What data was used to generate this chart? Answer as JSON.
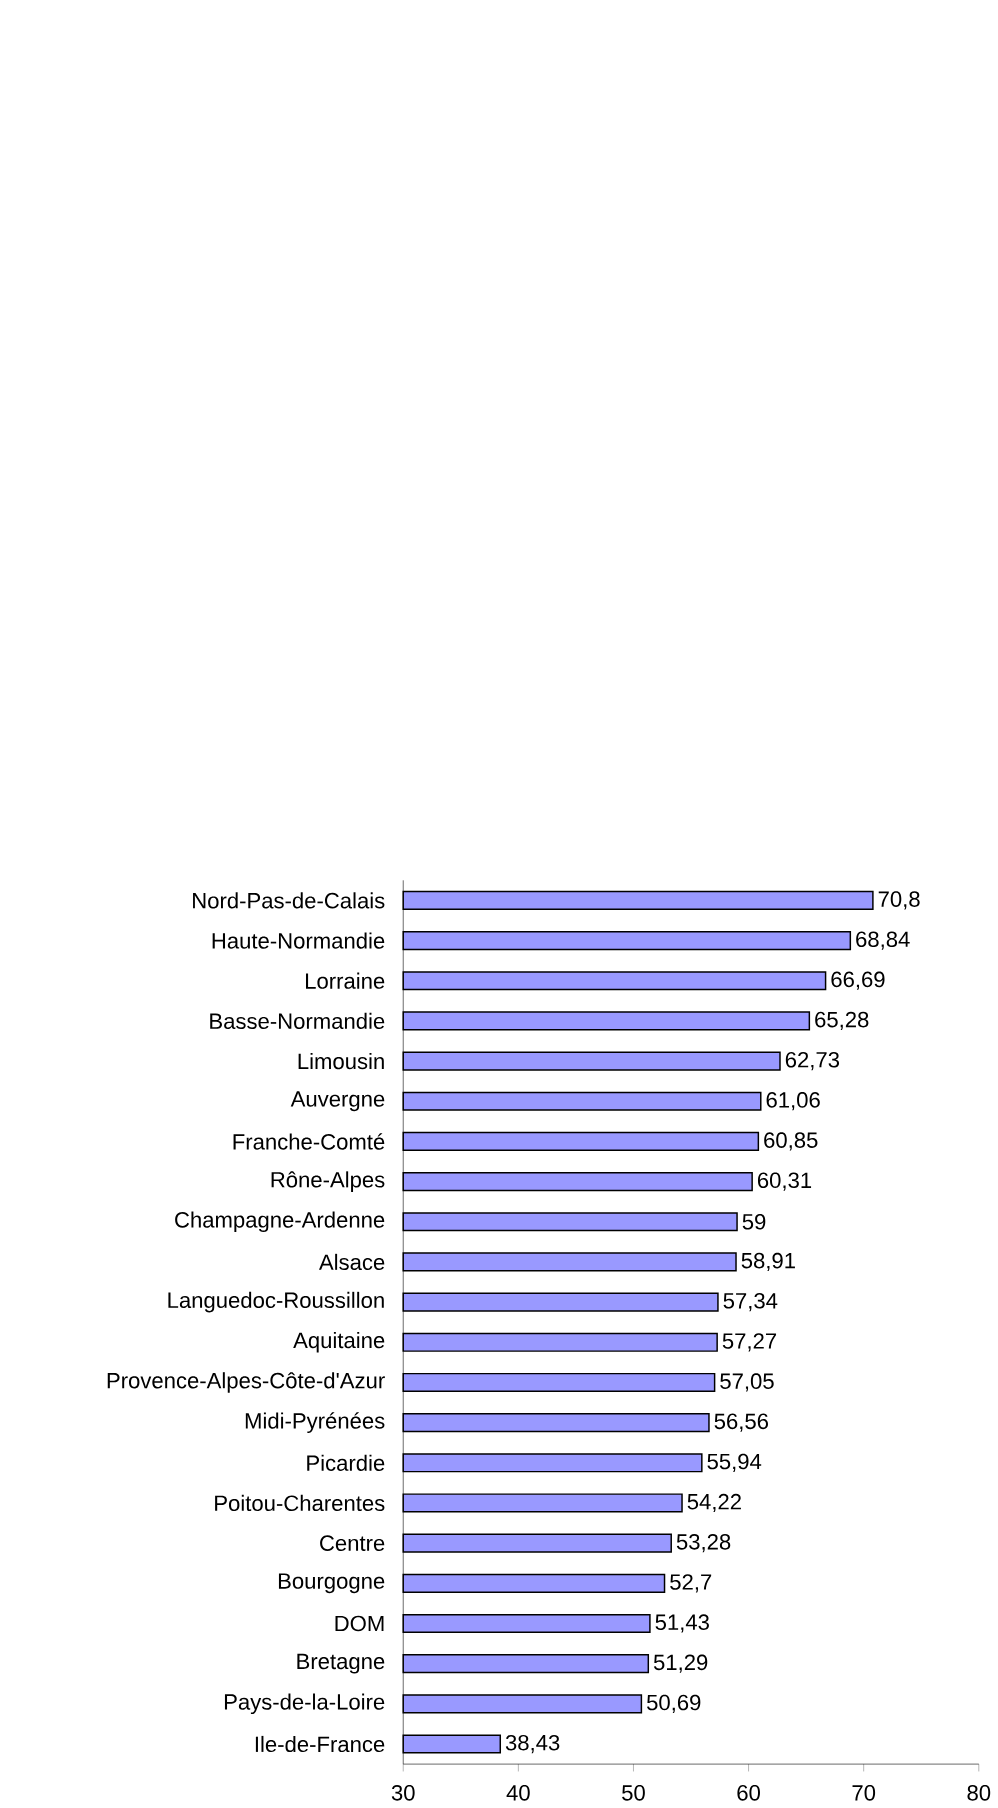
{
  "chart_data": {
    "type": "bar",
    "orientation": "horizontal",
    "categories": [
      "Nord-Pas-de-Calais",
      "Haute-Normandie",
      "Lorraine",
      "Basse-Normandie",
      "Limousin",
      "Auvergne",
      "Franche-Comté",
      "Rône-Alpes",
      "Champagne-Ardenne",
      "Alsace",
      "Languedoc-Roussillon",
      "Aquitaine",
      "Provence-Alpes-Côte-d'Azur",
      "Midi-Pyrénées",
      "Picardie",
      "Poitou-Charentes",
      "Centre",
      "Bourgogne",
      "DOM",
      "Bretagne",
      "Pays-de-la-Loire",
      "Ile-de-France"
    ],
    "values": [
      70.8,
      68.84,
      66.69,
      65.28,
      62.73,
      61.06,
      60.85,
      60.31,
      59,
      58.91,
      57.34,
      57.27,
      57.05,
      56.56,
      55.94,
      54.22,
      53.28,
      52.7,
      51.43,
      51.29,
      50.69,
      38.43
    ],
    "value_labels": [
      "70,8",
      "68,84",
      "66,69",
      "65,28",
      "62,73",
      "61,06",
      "60,85",
      "60,31",
      "59",
      "58,91",
      "57,34",
      "57,27",
      "57,05",
      "56,56",
      "55,94",
      "54,22",
      "53,28",
      "52,7",
      "51,43",
      "51,29",
      "50,69",
      "38,43"
    ],
    "color": "#9999ff",
    "xlim": [
      30,
      80
    ],
    "xticks": [
      30,
      40,
      50,
      60,
      70,
      80
    ]
  }
}
